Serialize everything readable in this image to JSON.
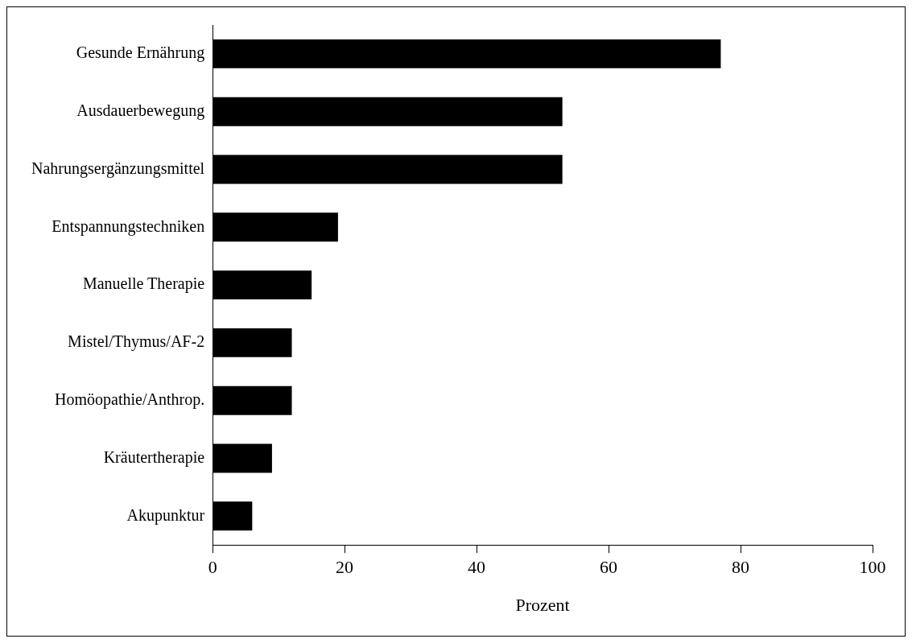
{
  "chart_data": {
    "type": "bar",
    "orientation": "horizontal",
    "xlabel": "Prozent",
    "categories": [
      "Gesunde Ernährung",
      "Ausdauerbewegung",
      "Nahrungsergänzungsmittel",
      "Entspannungstechniken",
      "Manuelle Therapie",
      "Mistel/Thymus/AF-2",
      "Homöopathie/Anthrop.",
      "Kräutertherapie",
      "Akupunktur"
    ],
    "values": [
      77,
      53,
      53,
      19,
      15,
      12,
      12,
      9,
      6
    ],
    "color": "#000000",
    "xlim": [
      0,
      100
    ],
    "xticks": [
      0,
      20,
      40,
      60,
      80,
      100
    ],
    "grid": false,
    "legend": false
  }
}
